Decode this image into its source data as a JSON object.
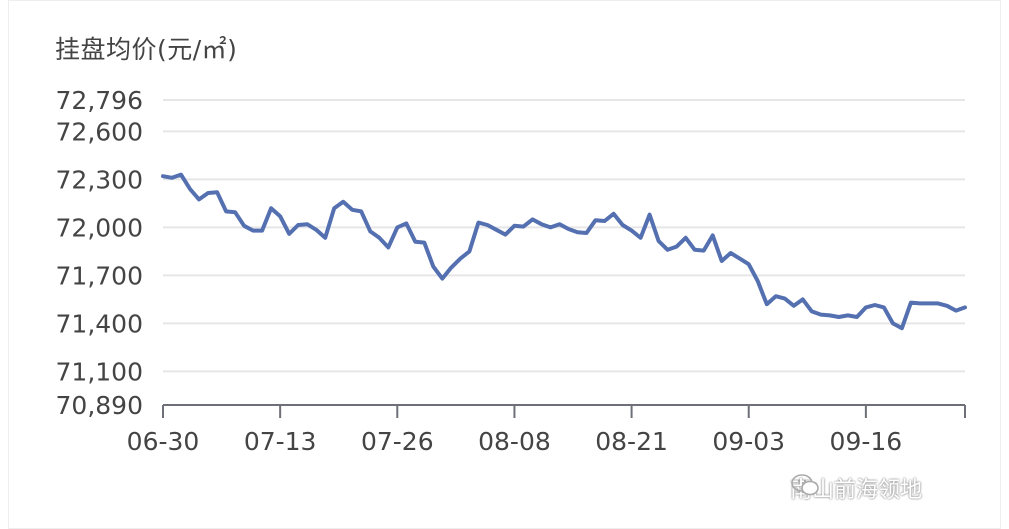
{
  "chart_data": {
    "type": "line",
    "ylabel": "挂盘均价(元/㎡)",
    "xlabel": "",
    "ylim": [
      70890,
      72796
    ],
    "yticks": [
      70890,
      71100,
      71400,
      71700,
      72000,
      72300,
      72600,
      72796
    ],
    "ytick_labels": [
      "70,890",
      "71,100",
      "71,400",
      "71,700",
      "72,000",
      "72,300",
      "72,600",
      "72,796"
    ],
    "xtick_labels": [
      "06-30",
      "07-13",
      "07-26",
      "08-08",
      "08-21",
      "09-03",
      "09-16"
    ],
    "grid": true,
    "color": "#5470b0",
    "series": [
      {
        "values": [
          72320,
          72310,
          72330,
          72240,
          72175,
          72215,
          72220,
          72100,
          72095,
          72010,
          71980,
          71980,
          72120,
          72070,
          71960,
          72015,
          72020,
          71985,
          71935,
          72120,
          72160,
          72110,
          72100,
          71975,
          71935,
          71875,
          72000,
          72025,
          71910,
          71905,
          71755,
          71680,
          71750,
          71805,
          71850,
          72030,
          72015,
          71985,
          71955,
          72010,
          72005,
          72050,
          72020,
          72000,
          72020,
          71990,
          71970,
          71965,
          72045,
          72040,
          72085,
          72015,
          71980,
          71935,
          72080,
          71915,
          71860,
          71880,
          71935,
          71860,
          71855,
          71950,
          71790,
          71840,
          71805,
          71770,
          71665,
          71520,
          71570,
          71555,
          71510,
          71550,
          71475,
          71455,
          71450,
          71440,
          71450,
          71440,
          71500,
          71515,
          71500,
          71400,
          71370,
          71530,
          71525,
          71525,
          71525,
          71510,
          71480,
          71500
        ]
      }
    ]
  },
  "watermark": {
    "text": "南山前海领地",
    "icon": "wechat-icon"
  }
}
